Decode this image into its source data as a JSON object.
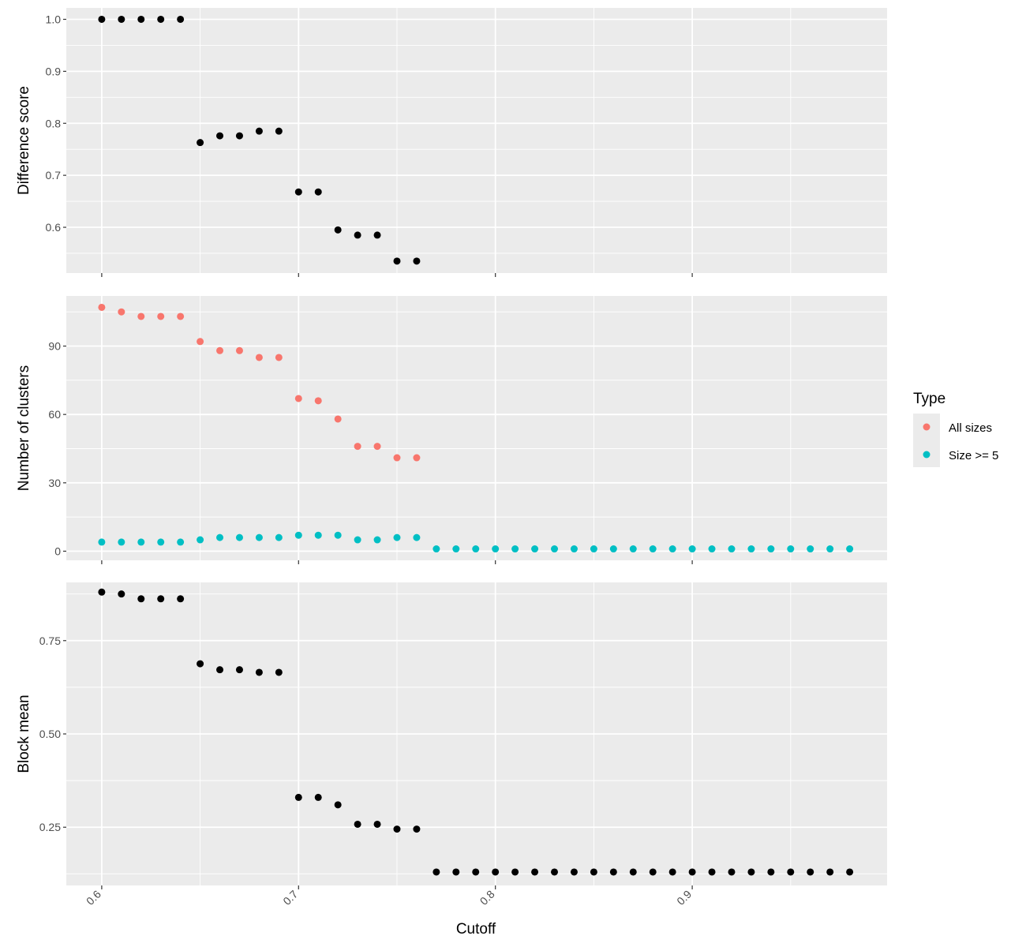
{
  "chart_data": {
    "type": "scatter",
    "xlabel": "Cutoff",
    "x_ticks": [
      "0.6",
      "0.7",
      "0.8",
      "0.9"
    ],
    "x_tick_values": [
      0.6,
      0.7,
      0.8,
      0.9
    ],
    "xlim": [
      0.582,
      0.999
    ],
    "legend": {
      "title": "Type",
      "placement": "right",
      "entries": [
        {
          "label": "All sizes",
          "color": "#F8766D"
        },
        {
          "label": "Size >= 5",
          "color": "#00BFC4"
        }
      ]
    },
    "panels": [
      {
        "ylabel": "Difference score",
        "y_ticks": [
          "0.6",
          "0.7",
          "0.8",
          "0.9",
          "1.0"
        ],
        "y_tick_values": [
          0.6,
          0.7,
          0.8,
          0.9,
          1.0
        ],
        "ylim": [
          0.512,
          1.022
        ],
        "series": [
          {
            "color": "#000000",
            "x": [
              0.6,
              0.61,
              0.62,
              0.63,
              0.64,
              0.65,
              0.66,
              0.67,
              0.68,
              0.69,
              0.7,
              0.71,
              0.72,
              0.73,
              0.74,
              0.75,
              0.76
            ],
            "y": [
              1.0,
              1.0,
              1.0,
              1.0,
              1.0,
              0.763,
              0.776,
              0.776,
              0.785,
              0.785,
              0.668,
              0.668,
              0.595,
              0.585,
              0.585,
              0.535,
              0.535
            ]
          }
        ]
      },
      {
        "ylabel": "Number of clusters",
        "y_ticks": [
          "0",
          "30",
          "60",
          "90"
        ],
        "y_tick_values": [
          0,
          30,
          60,
          90
        ],
        "ylim": [
          -4,
          112
        ],
        "series": [
          {
            "name": "All sizes",
            "color": "#F8766D",
            "x": [
              0.6,
              0.61,
              0.62,
              0.63,
              0.64,
              0.65,
              0.66,
              0.67,
              0.68,
              0.69,
              0.7,
              0.71,
              0.72,
              0.73,
              0.74,
              0.75,
              0.76
            ],
            "y": [
              107,
              105,
              103,
              103,
              103,
              92,
              88,
              88,
              85,
              85,
              67,
              66,
              58,
              46,
              46,
              41,
              41
            ]
          },
          {
            "name": "Size >= 5",
            "color": "#00BFC4",
            "x": [
              0.6,
              0.61,
              0.62,
              0.63,
              0.64,
              0.65,
              0.66,
              0.67,
              0.68,
              0.69,
              0.7,
              0.71,
              0.72,
              0.73,
              0.74,
              0.75,
              0.76,
              0.77,
              0.78,
              0.79,
              0.8,
              0.81,
              0.82,
              0.83,
              0.84,
              0.85,
              0.86,
              0.87,
              0.88,
              0.89,
              0.9,
              0.91,
              0.92,
              0.93,
              0.94,
              0.95,
              0.96,
              0.97,
              0.98
            ],
            "y": [
              4,
              4,
              4,
              4,
              4,
              5,
              6,
              6,
              6,
              6,
              7,
              7,
              7,
              5,
              5,
              6,
              6,
              1,
              1,
              1,
              1,
              1,
              1,
              1,
              1,
              1,
              1,
              1,
              1,
              1,
              1,
              1,
              1,
              1,
              1,
              1,
              1,
              1,
              1
            ]
          }
        ]
      },
      {
        "ylabel": "Block mean",
        "y_ticks": [
          "0.25",
          "0.50",
          "0.75"
        ],
        "y_tick_values": [
          0.25,
          0.5,
          0.75
        ],
        "ylim": [
          0.094,
          0.906
        ],
        "series": [
          {
            "color": "#000000",
            "x": [
              0.6,
              0.61,
              0.62,
              0.63,
              0.64,
              0.65,
              0.66,
              0.67,
              0.68,
              0.69,
              0.7,
              0.71,
              0.72,
              0.73,
              0.74,
              0.75,
              0.76,
              0.77,
              0.78,
              0.79,
              0.8,
              0.81,
              0.82,
              0.83,
              0.84,
              0.85,
              0.86,
              0.87,
              0.88,
              0.89,
              0.9,
              0.91,
              0.92,
              0.93,
              0.94,
              0.95,
              0.96,
              0.97,
              0.98
            ],
            "y": [
              0.88,
              0.875,
              0.862,
              0.862,
              0.862,
              0.688,
              0.672,
              0.672,
              0.665,
              0.665,
              0.33,
              0.33,
              0.31,
              0.258,
              0.258,
              0.245,
              0.245,
              0.13,
              0.13,
              0.13,
              0.13,
              0.13,
              0.13,
              0.13,
              0.13,
              0.13,
              0.13,
              0.13,
              0.13,
              0.13,
              0.13,
              0.13,
              0.13,
              0.13,
              0.13,
              0.13,
              0.13,
              0.13,
              0.13
            ]
          }
        ]
      }
    ]
  }
}
